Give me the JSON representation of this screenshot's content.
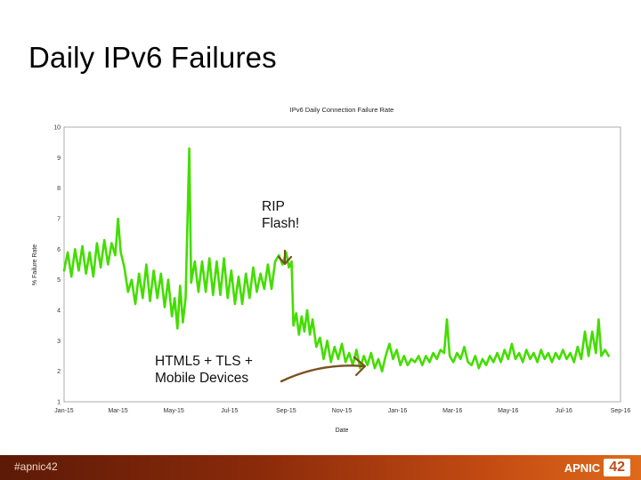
{
  "slide": {
    "title": "Daily IPv6 Failures",
    "hashtag": "#apnic42",
    "logo_word": "APNIC",
    "logo_number": "42"
  },
  "annotations": {
    "rip_flash_line1": "RIP",
    "rip_flash_line2": "Flash!",
    "html5_line1": "HTML5 + TLS +",
    "html5_line2": "Mobile Devices",
    "arrow_color": "#7a5220"
  },
  "colors": {
    "series": "#44dd00",
    "grid": "#cccccc",
    "footer_start": "#5c1a07",
    "footer_end": "#e06a1a"
  },
  "chart_data": {
    "type": "line",
    "title": "IPv6 Daily Connection Failure Rate",
    "xlabel": "Date",
    "ylabel": "% Failure Rate",
    "ylim": [
      1,
      10
    ],
    "yticks": [
      1,
      2,
      3,
      4,
      5,
      6,
      7,
      8,
      9,
      10
    ],
    "x_start": "2015-01-01",
    "x_end": "2016-09-01",
    "xticks": [
      "Jan-15",
      "Mar-15",
      "May-15",
      "Jul-15",
      "Sep-15",
      "Nov-15",
      "Jan-16",
      "Mar-16",
      "May-16",
      "Jul-16",
      "Sep-16"
    ],
    "xtick_dates": [
      "2015-01-01",
      "2015-03-01",
      "2015-05-01",
      "2015-07-01",
      "2015-09-01",
      "2015-11-01",
      "2016-01-01",
      "2016-03-01",
      "2016-05-01",
      "2016-07-01",
      "2016-09-01"
    ],
    "grid": true,
    "series": [
      {
        "points": [
          [
            "2015-01-01",
            5.3
          ],
          [
            "2015-01-05",
            5.9
          ],
          [
            "2015-01-09",
            5.1
          ],
          [
            "2015-01-13",
            6.0
          ],
          [
            "2015-01-17",
            5.3
          ],
          [
            "2015-01-21",
            6.1
          ],
          [
            "2015-01-25",
            5.2
          ],
          [
            "2015-01-29",
            5.9
          ],
          [
            "2015-02-02",
            5.1
          ],
          [
            "2015-02-06",
            6.2
          ],
          [
            "2015-02-10",
            5.4
          ],
          [
            "2015-02-14",
            6.3
          ],
          [
            "2015-02-18",
            5.5
          ],
          [
            "2015-02-22",
            6.2
          ],
          [
            "2015-02-26",
            5.8
          ],
          [
            "2015-03-01",
            7.0
          ],
          [
            "2015-03-04",
            5.9
          ],
          [
            "2015-03-08",
            5.4
          ],
          [
            "2015-03-12",
            4.6
          ],
          [
            "2015-03-16",
            5.0
          ],
          [
            "2015-03-20",
            4.2
          ],
          [
            "2015-03-24",
            5.2
          ],
          [
            "2015-03-28",
            4.4
          ],
          [
            "2015-04-01",
            5.5
          ],
          [
            "2015-04-05",
            4.3
          ],
          [
            "2015-04-09",
            5.3
          ],
          [
            "2015-04-13",
            4.4
          ],
          [
            "2015-04-17",
            5.2
          ],
          [
            "2015-04-21",
            4.1
          ],
          [
            "2015-04-25",
            5.0
          ],
          [
            "2015-04-29",
            3.8
          ],
          [
            "2015-05-02",
            4.4
          ],
          [
            "2015-05-05",
            3.4
          ],
          [
            "2015-05-08",
            4.8
          ],
          [
            "2015-05-11",
            3.6
          ],
          [
            "2015-05-14",
            4.4
          ],
          [
            "2015-05-18",
            9.3
          ],
          [
            "2015-05-20",
            4.9
          ],
          [
            "2015-05-24",
            5.6
          ],
          [
            "2015-05-28",
            4.6
          ],
          [
            "2015-06-01",
            5.6
          ],
          [
            "2015-06-05",
            4.6
          ],
          [
            "2015-06-09",
            5.7
          ],
          [
            "2015-06-13",
            4.5
          ],
          [
            "2015-06-17",
            5.6
          ],
          [
            "2015-06-21",
            4.5
          ],
          [
            "2015-06-25",
            5.7
          ],
          [
            "2015-06-29",
            4.4
          ],
          [
            "2015-07-03",
            5.3
          ],
          [
            "2015-07-07",
            4.2
          ],
          [
            "2015-07-11",
            5.1
          ],
          [
            "2015-07-15",
            4.2
          ],
          [
            "2015-07-19",
            5.2
          ],
          [
            "2015-07-23",
            4.4
          ],
          [
            "2015-07-27",
            5.4
          ],
          [
            "2015-07-31",
            4.6
          ],
          [
            "2015-08-04",
            5.2
          ],
          [
            "2015-08-08",
            4.7
          ],
          [
            "2015-08-12",
            5.5
          ],
          [
            "2015-08-16",
            4.7
          ],
          [
            "2015-08-20",
            5.6
          ],
          [
            "2015-08-24",
            5.8
          ],
          [
            "2015-08-28",
            5.5
          ],
          [
            "2015-09-01",
            5.9
          ],
          [
            "2015-09-04",
            5.4
          ],
          [
            "2015-09-07",
            5.6
          ],
          [
            "2015-09-09",
            3.5
          ],
          [
            "2015-09-12",
            3.9
          ],
          [
            "2015-09-15",
            3.2
          ],
          [
            "2015-09-18",
            3.8
          ],
          [
            "2015-09-21",
            3.3
          ],
          [
            "2015-09-24",
            4.0
          ],
          [
            "2015-09-27",
            3.2
          ],
          [
            "2015-09-30",
            3.7
          ],
          [
            "2015-10-04",
            2.8
          ],
          [
            "2015-10-08",
            3.1
          ],
          [
            "2015-10-12",
            2.4
          ],
          [
            "2015-10-16",
            3.0
          ],
          [
            "2015-10-20",
            2.3
          ],
          [
            "2015-10-24",
            2.8
          ],
          [
            "2015-10-28",
            2.4
          ],
          [
            "2015-11-01",
            2.9
          ],
          [
            "2015-11-05",
            2.3
          ],
          [
            "2015-11-09",
            2.6
          ],
          [
            "2015-11-13",
            2.2
          ],
          [
            "2015-11-17",
            2.7
          ],
          [
            "2015-11-21",
            2.1
          ],
          [
            "2015-11-25",
            2.5
          ],
          [
            "2015-11-29",
            2.2
          ],
          [
            "2015-12-03",
            2.6
          ],
          [
            "2015-12-07",
            2.1
          ],
          [
            "2015-12-11",
            2.4
          ],
          [
            "2015-12-15",
            2.0
          ],
          [
            "2015-12-19",
            2.5
          ],
          [
            "2015-12-23",
            2.9
          ],
          [
            "2015-12-27",
            2.4
          ],
          [
            "2015-12-31",
            2.7
          ],
          [
            "2016-01-04",
            2.2
          ],
          [
            "2016-01-08",
            2.5
          ],
          [
            "2016-01-12",
            2.2
          ],
          [
            "2016-01-16",
            2.4
          ],
          [
            "2016-01-20",
            2.3
          ],
          [
            "2016-01-24",
            2.5
          ],
          [
            "2016-01-28",
            2.2
          ],
          [
            "2016-02-01",
            2.5
          ],
          [
            "2016-02-05",
            2.3
          ],
          [
            "2016-02-09",
            2.6
          ],
          [
            "2016-02-13",
            2.4
          ],
          [
            "2016-02-17",
            2.7
          ],
          [
            "2016-02-21",
            2.6
          ],
          [
            "2016-02-24",
            3.7
          ],
          [
            "2016-02-27",
            2.5
          ],
          [
            "2016-03-02",
            2.3
          ],
          [
            "2016-03-06",
            2.6
          ],
          [
            "2016-03-10",
            2.4
          ],
          [
            "2016-03-14",
            2.8
          ],
          [
            "2016-03-18",
            2.3
          ],
          [
            "2016-03-22",
            2.2
          ],
          [
            "2016-03-26",
            2.5
          ],
          [
            "2016-03-30",
            2.1
          ],
          [
            "2016-04-03",
            2.4
          ],
          [
            "2016-04-07",
            2.2
          ],
          [
            "2016-04-11",
            2.5
          ],
          [
            "2016-04-15",
            2.3
          ],
          [
            "2016-04-19",
            2.6
          ],
          [
            "2016-04-23",
            2.3
          ],
          [
            "2016-04-27",
            2.7
          ],
          [
            "2016-05-01",
            2.4
          ],
          [
            "2016-05-05",
            2.9
          ],
          [
            "2016-05-09",
            2.4
          ],
          [
            "2016-05-13",
            2.6
          ],
          [
            "2016-05-17",
            2.3
          ],
          [
            "2016-05-21",
            2.7
          ],
          [
            "2016-05-25",
            2.4
          ],
          [
            "2016-05-29",
            2.6
          ],
          [
            "2016-06-02",
            2.3
          ],
          [
            "2016-06-06",
            2.7
          ],
          [
            "2016-06-10",
            2.4
          ],
          [
            "2016-06-14",
            2.6
          ],
          [
            "2016-06-18",
            2.3
          ],
          [
            "2016-06-22",
            2.6
          ],
          [
            "2016-06-26",
            2.4
          ],
          [
            "2016-06-30",
            2.7
          ],
          [
            "2016-07-04",
            2.4
          ],
          [
            "2016-07-08",
            2.6
          ],
          [
            "2016-07-12",
            2.3
          ],
          [
            "2016-07-16",
            2.8
          ],
          [
            "2016-07-20",
            2.4
          ],
          [
            "2016-07-24",
            3.3
          ],
          [
            "2016-07-28",
            2.5
          ],
          [
            "2016-08-01",
            3.3
          ],
          [
            "2016-08-05",
            2.6
          ],
          [
            "2016-08-08",
            3.7
          ],
          [
            "2016-08-11",
            2.5
          ],
          [
            "2016-08-15",
            2.7
          ],
          [
            "2016-08-19",
            2.5
          ]
        ]
      }
    ]
  }
}
